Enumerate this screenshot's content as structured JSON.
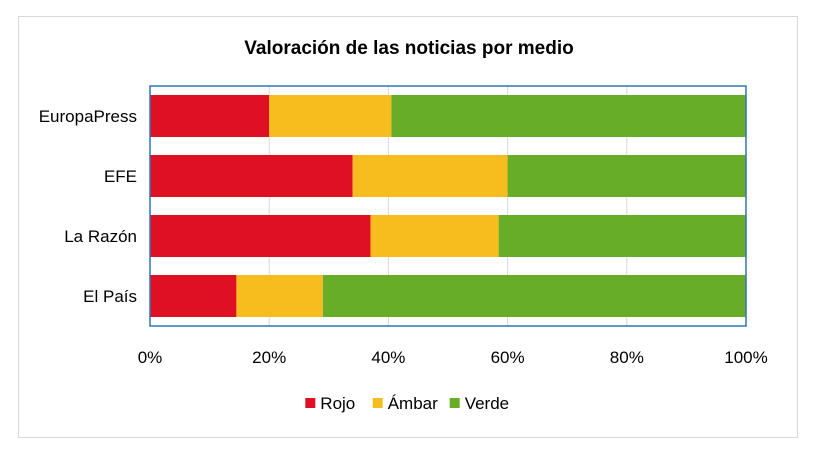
{
  "chart_data": {
    "type": "bar",
    "orientation": "horizontal",
    "stacked": "percent",
    "title": "Valoración de las noticias por medio",
    "categories": [
      "EuropaPress",
      "EFE",
      "La Razón",
      "El País"
    ],
    "series": [
      {
        "name": "Rojo",
        "values": [
          20,
          34,
          37,
          14.5
        ],
        "color": "#e01024"
      },
      {
        "name": "Ámbar",
        "values": [
          20.5,
          26,
          21.5,
          14.5
        ],
        "color": "#f7bd1f"
      },
      {
        "name": "Verde",
        "values": [
          59.5,
          40,
          41.5,
          71
        ],
        "color": "#68ad27"
      }
    ],
    "x_ticks": [
      "0%",
      "20%",
      "40%",
      "60%",
      "80%",
      "100%"
    ],
    "xlim": [
      0,
      100
    ],
    "grid": "vertical",
    "legend": "bottom",
    "plot_border_color": "#2e75b6",
    "grid_color": "#d9d9d9"
  }
}
